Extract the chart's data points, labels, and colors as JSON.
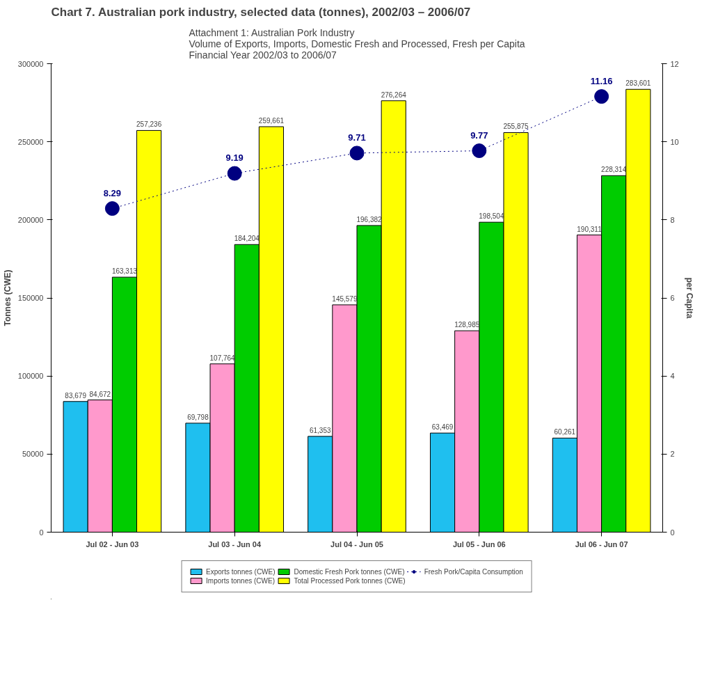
{
  "chart_data": {
    "type": "bar",
    "title": "Chart 7. Australian pork industry, selected data (tonnes), 2002/03 – 2006/07",
    "subtitle": "Attachment 1: Australian Pork Industry\nVolume of Exports, Imports, Domestic Fresh and Processed, Fresh per Capita\nFinancial Year 2002/03 to 2006/07",
    "ylabel": "Tonnes (CWE)",
    "y2label": "per Capita",
    "categories": [
      "Jul 02 - Jun 03",
      "Jul 03 - Jun 04",
      "Jul 04 - Jun 05",
      "Jul 05 - Jun 06",
      "Jul 06 - Jun 07"
    ],
    "ylim": [
      0,
      300000
    ],
    "yticks": [
      0,
      50000,
      100000,
      150000,
      200000,
      250000,
      300000
    ],
    "y2lim": [
      0,
      12
    ],
    "y2ticks": [
      0,
      2,
      4,
      6,
      8,
      10,
      12
    ],
    "grid": false,
    "legend": "bottom",
    "series": [
      {
        "name": "Exports tonnes (CWE)",
        "color": "#1fbfef",
        "values": [
          83679,
          69798,
          61353,
          63469,
          60261
        ],
        "value_labels": [
          "83,679",
          "69,798",
          "61,353",
          "63,469",
          "60,261"
        ]
      },
      {
        "name": "Imports tonnes (CWE)",
        "color": "#ff99cc",
        "values": [
          84672,
          107764,
          145579,
          128985,
          190311
        ],
        "value_labels": [
          "84,672",
          "107,764",
          "145,579",
          "128,985",
          "190,311"
        ]
      },
      {
        "name": "Domestic Fresh Pork tonnes (CWE)",
        "color": "#00cc00",
        "values": [
          163313,
          184204,
          196382,
          198504,
          228314
        ],
        "value_labels": [
          "163,313",
          "184,204",
          "196,382",
          "198,504",
          "228,314"
        ]
      },
      {
        "name": "Total Processed Pork tonnes (CWE)",
        "color": "#ffff00",
        "values": [
          257236,
          259661,
          276264,
          255875,
          283601
        ],
        "value_labels": [
          "257,236",
          "259,661",
          "276,264",
          "255,875",
          "283,601"
        ]
      },
      {
        "name": "Fresh Pork/Capita Consumption",
        "type": "line",
        "axis": "y2",
        "color": "#000080",
        "marker": "circle",
        "line_style": "dotted",
        "values": [
          8.29,
          9.19,
          9.71,
          9.77,
          11.16
        ],
        "value_labels": [
          "8.29",
          "9.19",
          "9.71",
          "9.77",
          "11.16"
        ]
      }
    ]
  }
}
